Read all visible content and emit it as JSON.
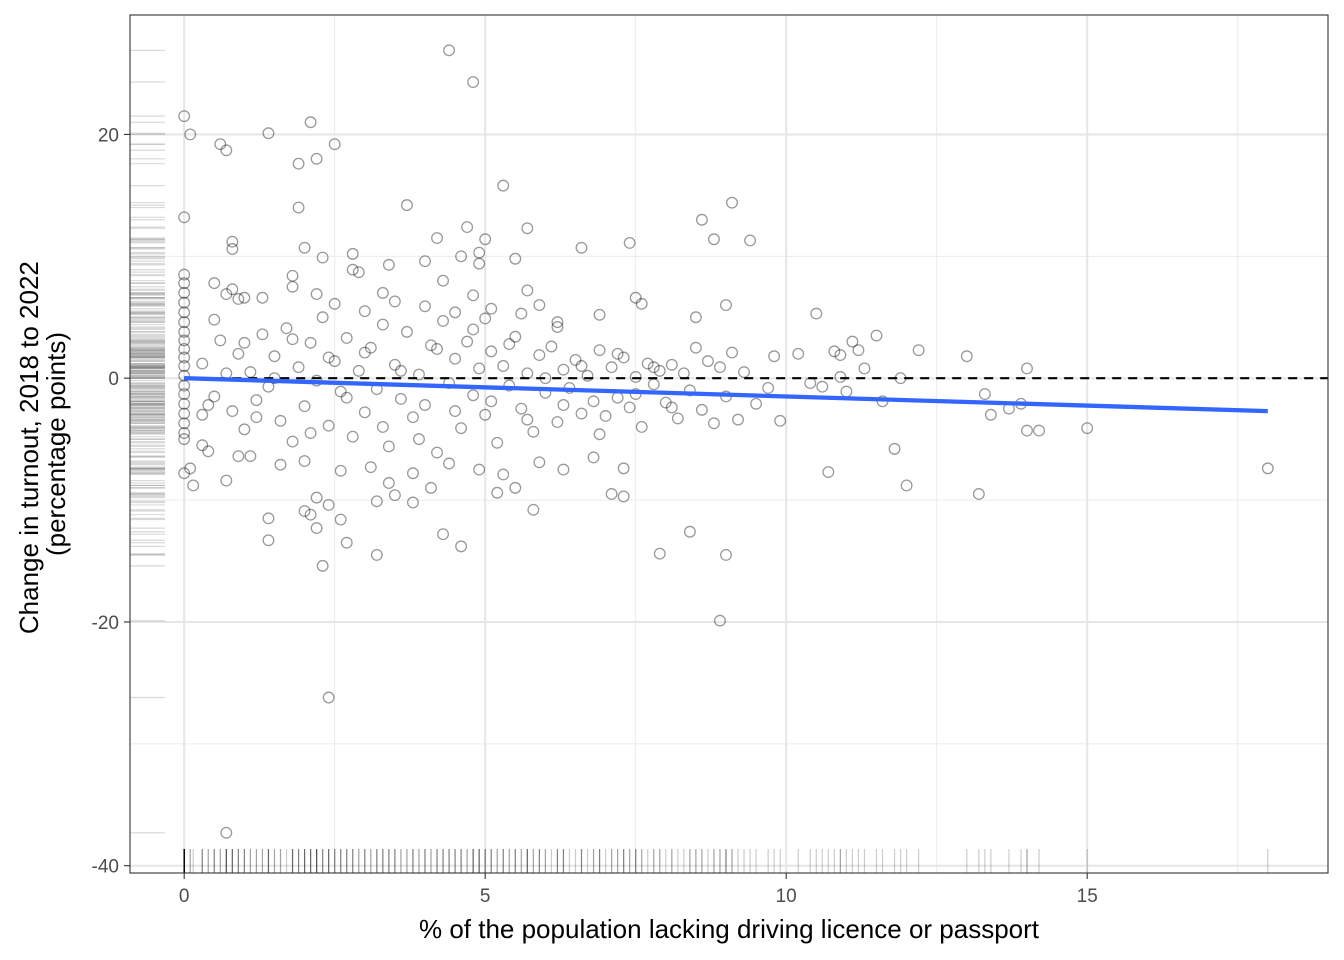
{
  "chart_data": {
    "type": "scatter",
    "title": "",
    "xlabel": "% of the population lacking driving licence or passport",
    "ylabel": [
      "Change in turnout, 2018 to 2022",
      "(percentage points)"
    ],
    "xlim": [
      -0.9,
      19.0
    ],
    "ylim": [
      -40.6,
      29.8
    ],
    "x_ticks": [
      0,
      5,
      10,
      15
    ],
    "y_ticks": [
      -40,
      -20,
      0,
      20
    ],
    "grid": true,
    "reference_line": {
      "y": 0,
      "style": "dashed",
      "color": "#000000"
    },
    "trend_line": {
      "x": [
        0,
        18.0
      ],
      "y": [
        0.0,
        -2.7
      ],
      "color": "#3366FF"
    },
    "point_style": {
      "shape": "open-circle",
      "color": "#000000",
      "opacity": 0.4
    },
    "rug": {
      "x_axis": true,
      "y_axis": true
    },
    "points": [
      [
        0.0,
        21.5
      ],
      [
        0.1,
        20.0
      ],
      [
        0.0,
        13.2
      ],
      [
        0.0,
        8.5
      ],
      [
        0.0,
        7.8
      ],
      [
        0.0,
        7.0
      ],
      [
        0.0,
        6.2
      ],
      [
        0.0,
        5.4
      ],
      [
        0.0,
        4.6
      ],
      [
        0.0,
        3.8
      ],
      [
        0.0,
        3.1
      ],
      [
        0.0,
        2.4
      ],
      [
        0.0,
        1.7
      ],
      [
        0.0,
        1.0
      ],
      [
        0.0,
        0.2
      ],
      [
        0.0,
        -0.6
      ],
      [
        0.0,
        -1.3
      ],
      [
        0.0,
        -2.1
      ],
      [
        0.0,
        -2.9
      ],
      [
        0.0,
        -3.7
      ],
      [
        0.0,
        -4.5
      ],
      [
        0.0,
        -5.0
      ],
      [
        0.0,
        -7.8
      ],
      [
        0.1,
        -7.4
      ],
      [
        0.15,
        -8.8
      ],
      [
        0.3,
        -3.0
      ],
      [
        0.3,
        -5.5
      ],
      [
        0.4,
        -6.0
      ],
      [
        0.5,
        7.8
      ],
      [
        0.5,
        4.8
      ],
      [
        0.6,
        19.2
      ],
      [
        0.7,
        18.7
      ],
      [
        0.7,
        6.9
      ],
      [
        0.7,
        -8.4
      ],
      [
        0.7,
        -37.3
      ],
      [
        0.8,
        11.2
      ],
      [
        0.8,
        10.6
      ],
      [
        0.8,
        7.3
      ],
      [
        0.9,
        6.5
      ],
      [
        0.9,
        -6.4
      ],
      [
        1.0,
        6.6
      ],
      [
        1.3,
        6.6
      ],
      [
        1.4,
        -11.5
      ],
      [
        1.4,
        -13.3
      ],
      [
        1.4,
        20.1
      ],
      [
        1.8,
        8.4
      ],
      [
        1.8,
        7.5
      ],
      [
        1.9,
        14.0
      ],
      [
        1.9,
        17.6
      ],
      [
        2.0,
        10.7
      ],
      [
        2.0,
        -10.9
      ],
      [
        2.1,
        -11.2
      ],
      [
        2.1,
        21.0
      ],
      [
        2.2,
        18.0
      ],
      [
        2.2,
        6.9
      ],
      [
        2.3,
        9.9
      ],
      [
        2.2,
        -9.8
      ],
      [
        2.2,
        -12.3
      ],
      [
        2.3,
        -15.4
      ],
      [
        2.4,
        -26.2
      ],
      [
        2.4,
        -10.4
      ],
      [
        2.5,
        19.2
      ],
      [
        2.6,
        -11.6
      ],
      [
        2.7,
        -13.5
      ],
      [
        2.8,
        10.2
      ],
      [
        2.8,
        8.9
      ],
      [
        2.9,
        8.7
      ],
      [
        3.2,
        -14.5
      ],
      [
        3.2,
        -10.1
      ],
      [
        3.3,
        7.0
      ],
      [
        3.4,
        9.3
      ],
      [
        3.5,
        -9.6
      ],
      [
        3.7,
        14.2
      ],
      [
        3.8,
        -10.2
      ],
      [
        4.0,
        9.6
      ],
      [
        4.2,
        11.5
      ],
      [
        4.3,
        8.0
      ],
      [
        4.3,
        -12.8
      ],
      [
        4.4,
        26.9
      ],
      [
        4.6,
        10.0
      ],
      [
        4.6,
        -13.8
      ],
      [
        4.7,
        12.4
      ],
      [
        4.8,
        6.8
      ],
      [
        4.8,
        24.3
      ],
      [
        4.9,
        9.4
      ],
      [
        4.9,
        10.3
      ],
      [
        5.0,
        11.4
      ],
      [
        5.1,
        5.7
      ],
      [
        5.2,
        -9.4
      ],
      [
        5.3,
        15.8
      ],
      [
        5.5,
        9.8
      ],
      [
        5.5,
        -9.0
      ],
      [
        5.7,
        12.3
      ],
      [
        5.7,
        7.2
      ],
      [
        5.8,
        -10.8
      ],
      [
        5.9,
        6.0
      ],
      [
        6.2,
        4.6
      ],
      [
        6.6,
        10.7
      ],
      [
        6.9,
        5.2
      ],
      [
        7.1,
        -9.5
      ],
      [
        7.3,
        -9.7
      ],
      [
        7.4,
        11.1
      ],
      [
        7.5,
        6.6
      ],
      [
        7.6,
        6.1
      ],
      [
        7.9,
        -14.4
      ],
      [
        8.4,
        -12.6
      ],
      [
        8.5,
        5.0
      ],
      [
        8.6,
        13.0
      ],
      [
        8.8,
        11.4
      ],
      [
        8.9,
        -19.9
      ],
      [
        9.0,
        6.0
      ],
      [
        9.0,
        -14.5
      ],
      [
        9.1,
        14.4
      ],
      [
        9.4,
        11.3
      ],
      [
        10.2,
        2.0
      ],
      [
        10.5,
        5.3
      ],
      [
        10.7,
        -7.7
      ],
      [
        10.8,
        2.2
      ],
      [
        10.9,
        1.9
      ],
      [
        11.1,
        3.0
      ],
      [
        11.2,
        2.3
      ],
      [
        11.5,
        3.5
      ],
      [
        11.8,
        -5.8
      ],
      [
        12.0,
        -8.8
      ],
      [
        12.2,
        2.3
      ],
      [
        13.0,
        1.8
      ],
      [
        13.2,
        -9.5
      ],
      [
        13.3,
        -1.3
      ],
      [
        13.4,
        -3.0
      ],
      [
        13.7,
        -2.5
      ],
      [
        13.9,
        -2.1
      ],
      [
        14.0,
        -4.3
      ],
      [
        14.0,
        0.8
      ],
      [
        14.2,
        -4.3
      ],
      [
        15.0,
        -4.1
      ],
      [
        18.0,
        -7.4
      ],
      [
        0.3,
        1.2
      ],
      [
        0.5,
        -1.5
      ],
      [
        0.6,
        3.1
      ],
      [
        0.8,
        -2.7
      ],
      [
        0.9,
        2.0
      ],
      [
        1.0,
        -4.2
      ],
      [
        1.1,
        0.5
      ],
      [
        1.2,
        -1.8
      ],
      [
        1.3,
        3.6
      ],
      [
        1.4,
        -0.7
      ],
      [
        1.5,
        1.8
      ],
      [
        1.6,
        -3.5
      ],
      [
        1.7,
        4.1
      ],
      [
        1.8,
        -5.2
      ],
      [
        1.9,
        0.9
      ],
      [
        2.0,
        -2.3
      ],
      [
        2.1,
        2.9
      ],
      [
        2.2,
        -0.2
      ],
      [
        2.3,
        5.0
      ],
      [
        2.4,
        -3.9
      ],
      [
        2.5,
        1.4
      ],
      [
        2.6,
        -1.1
      ],
      [
        2.7,
        3.3
      ],
      [
        2.8,
        -4.8
      ],
      [
        2.9,
        0.6
      ],
      [
        3.0,
        -2.8
      ],
      [
        3.1,
        2.5
      ],
      [
        3.2,
        -0.9
      ],
      [
        3.3,
        4.4
      ],
      [
        3.4,
        -5.6
      ],
      [
        3.5,
        1.1
      ],
      [
        3.6,
        -1.7
      ],
      [
        3.7,
        3.8
      ],
      [
        3.8,
        -3.2
      ],
      [
        3.9,
        0.3
      ],
      [
        4.0,
        -2.2
      ],
      [
        4.1,
        2.7
      ],
      [
        4.2,
        -6.1
      ],
      [
        4.3,
        4.7
      ],
      [
        4.4,
        -0.4
      ],
      [
        4.5,
        1.6
      ],
      [
        4.6,
        -4.1
      ],
      [
        4.7,
        3.0
      ],
      [
        4.8,
        -1.4
      ],
      [
        4.9,
        0.8
      ],
      [
        5.0,
        -3.0
      ],
      [
        5.1,
        2.2
      ],
      [
        5.2,
        -5.3
      ],
      [
        5.3,
        1.0
      ],
      [
        5.4,
        -0.6
      ],
      [
        5.5,
        3.4
      ],
      [
        5.6,
        -2.5
      ],
      [
        5.7,
        0.4
      ],
      [
        5.8,
        -4.4
      ],
      [
        5.9,
        1.9
      ],
      [
        6.0,
        -1.2
      ],
      [
        6.1,
        2.6
      ],
      [
        6.2,
        -3.6
      ],
      [
        6.3,
        0.7
      ],
      [
        6.4,
        -0.8
      ],
      [
        6.5,
        1.5
      ],
      [
        6.6,
        -2.9
      ],
      [
        6.7,
        0.2
      ],
      [
        6.8,
        -1.9
      ],
      [
        6.9,
        2.3
      ],
      [
        7.0,
        -3.1
      ],
      [
        7.1,
        0.9
      ],
      [
        7.2,
        -1.6
      ],
      [
        7.3,
        1.7
      ],
      [
        7.4,
        -2.4
      ],
      [
        7.5,
        0.1
      ],
      [
        7.6,
        -4.0
      ],
      [
        7.7,
        1.2
      ],
      [
        7.8,
        -0.5
      ],
      [
        7.9,
        0.6
      ],
      [
        8.0,
        -2.0
      ],
      [
        8.1,
        1.1
      ],
      [
        8.2,
        -3.3
      ],
      [
        8.3,
        0.4
      ],
      [
        8.4,
        -1.0
      ],
      [
        8.5,
        2.5
      ],
      [
        8.6,
        -2.6
      ],
      [
        8.7,
        1.4
      ],
      [
        8.8,
        -3.7
      ],
      [
        8.9,
        0.9
      ],
      [
        9.0,
        -1.5
      ],
      [
        9.1,
        2.1
      ],
      [
        9.2,
        -3.4
      ],
      [
        9.3,
        0.5
      ],
      [
        9.5,
        -2.1
      ],
      [
        9.7,
        -0.8
      ],
      [
        9.9,
        -3.5
      ],
      [
        9.8,
        1.8
      ],
      [
        10.4,
        -0.4
      ],
      [
        10.6,
        -0.7
      ],
      [
        11.0,
        -1.1
      ],
      [
        11.6,
        -1.9
      ],
      [
        11.9,
        0.0
      ],
      [
        11.3,
        0.8
      ],
      [
        10.9,
        0.1
      ],
      [
        0.4,
        -2.2
      ],
      [
        0.7,
        0.4
      ],
      [
        1.0,
        2.9
      ],
      [
        1.2,
        -3.2
      ],
      [
        1.5,
        0.0
      ],
      [
        1.8,
        3.2
      ],
      [
        2.1,
        -4.5
      ],
      [
        2.4,
        1.7
      ],
      [
        2.7,
        -1.6
      ],
      [
        3.0,
        2.1
      ],
      [
        3.3,
        -4.0
      ],
      [
        3.6,
        0.6
      ],
      [
        3.9,
        -5.0
      ],
      [
        4.2,
        2.4
      ],
      [
        4.5,
        -2.7
      ],
      [
        4.8,
        4.0
      ],
      [
        5.1,
        -1.9
      ],
      [
        5.4,
        2.8
      ],
      [
        5.7,
        -3.4
      ],
      [
        6.0,
        0.0
      ],
      [
        6.3,
        -2.2
      ],
      [
        6.6,
        1.0
      ],
      [
        6.9,
        -4.6
      ],
      [
        7.2,
        2.0
      ],
      [
        7.5,
        -1.3
      ],
      [
        7.8,
        0.9
      ],
      [
        8.1,
        -2.4
      ],
      [
        1.1,
        -6.4
      ],
      [
        1.6,
        -7.1
      ],
      [
        2.0,
        -6.8
      ],
      [
        2.6,
        -7.6
      ],
      [
        3.1,
        -7.3
      ],
      [
        3.4,
        -8.6
      ],
      [
        3.8,
        -7.8
      ],
      [
        4.1,
        -9.0
      ],
      [
        4.4,
        -7.0
      ],
      [
        4.9,
        -7.5
      ],
      [
        5.3,
        -7.9
      ],
      [
        5.9,
        -6.9
      ],
      [
        6.3,
        -7.5
      ],
      [
        6.8,
        -6.5
      ],
      [
        7.3,
        -7.4
      ],
      [
        2.5,
        6.1
      ],
      [
        3.0,
        5.5
      ],
      [
        3.5,
        6.3
      ],
      [
        4.0,
        5.9
      ],
      [
        4.5,
        5.4
      ],
      [
        5.0,
        4.9
      ],
      [
        5.6,
        5.3
      ],
      [
        6.2,
        4.2
      ]
    ]
  }
}
